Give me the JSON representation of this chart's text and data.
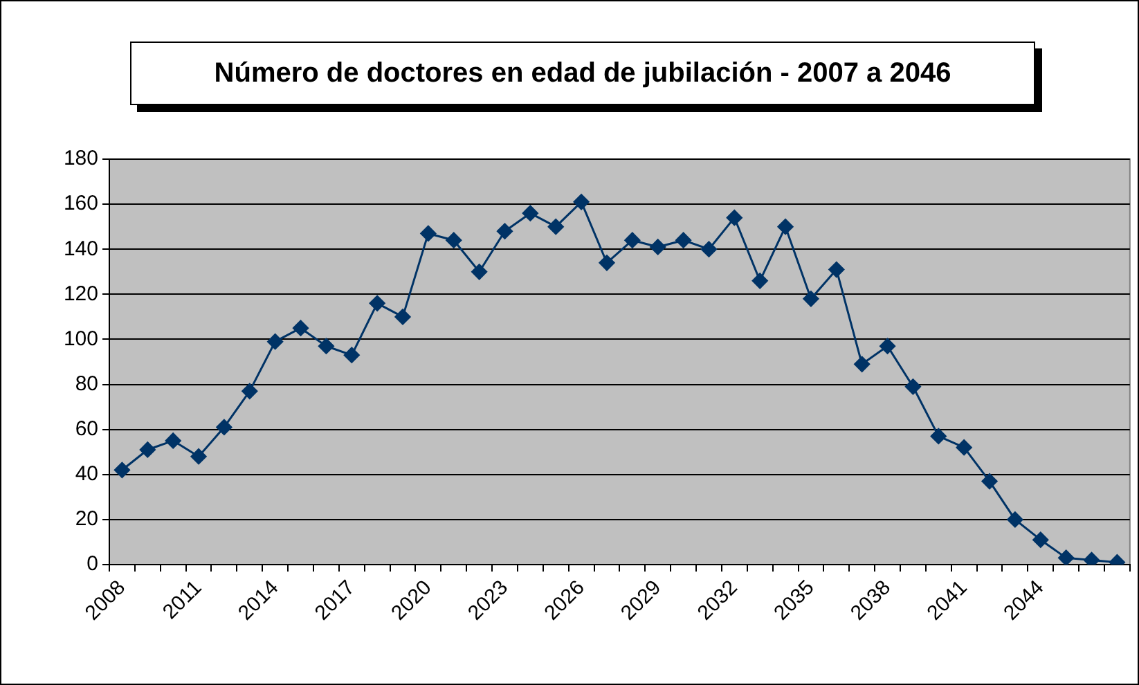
{
  "chart_data": {
    "type": "line",
    "title": "Número de doctores en edad de jubilación - 2007 a 2046",
    "categories": [
      "2008",
      null,
      null,
      "2011",
      null,
      null,
      "2014",
      null,
      null,
      "2017",
      null,
      null,
      "2020",
      null,
      null,
      "2023",
      null,
      null,
      "2026",
      null,
      null,
      "2029",
      null,
      null,
      "2032",
      null,
      null,
      "2035",
      null,
      null,
      "2038",
      null,
      null,
      "2041",
      null,
      null,
      "2044",
      null,
      null,
      null
    ],
    "series": [
      {
        "color": "#003366",
        "values": [
          42,
          51,
          55,
          48,
          61,
          77,
          99,
          105,
          97,
          93,
          116,
          110,
          147,
          144,
          130,
          148,
          156,
          150,
          161,
          134,
          144,
          141,
          144,
          140,
          154,
          126,
          150,
          118,
          131,
          89,
          97,
          79,
          57,
          52,
          37,
          20,
          11,
          3,
          2,
          1
        ]
      }
    ],
    "ylim": [
      0,
      180
    ],
    "yticks": [
      0,
      20,
      40,
      60,
      80,
      100,
      120,
      140,
      160,
      180
    ],
    "grid": "y",
    "marker": "diamond"
  }
}
